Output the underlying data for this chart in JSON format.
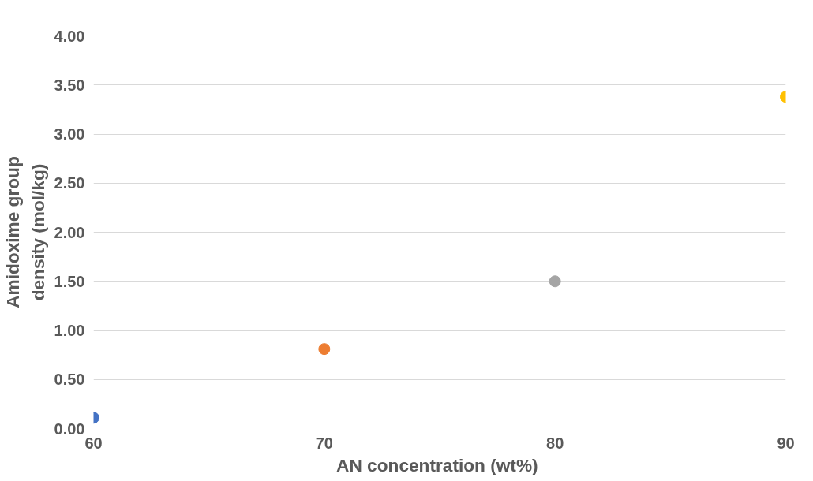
{
  "chart_data": {
    "type": "scatter",
    "xlabel": "AN concentration  (wt%)",
    "ylabel": "Amidoxime group\ndensity (mol/kg)",
    "x": [
      60,
      70,
      80,
      90
    ],
    "values": [
      0.11,
      0.81,
      1.5,
      3.38
    ],
    "colors": [
      "#4472c4",
      "#ed7d31",
      "#a5a5a5",
      "#ffc000"
    ],
    "marker": "circle",
    "grid": "y",
    "xlim": [
      60,
      90
    ],
    "xticks": [
      60,
      70,
      80,
      90
    ],
    "ylim": [
      0,
      4
    ],
    "yticks": [
      {
        "value": 0,
        "label": "0.00"
      },
      {
        "value": 0.5,
        "label": "0.50"
      },
      {
        "value": 1,
        "label": "1.00"
      },
      {
        "value": 1.5,
        "label": "1.50"
      },
      {
        "value": 2,
        "label": "2.00"
      },
      {
        "value": 2.5,
        "label": "2.50"
      },
      {
        "value": 3,
        "label": "3.00"
      },
      {
        "value": 3.5,
        "label": "3.50"
      },
      {
        "value": 4,
        "label": "4.00"
      }
    ]
  }
}
